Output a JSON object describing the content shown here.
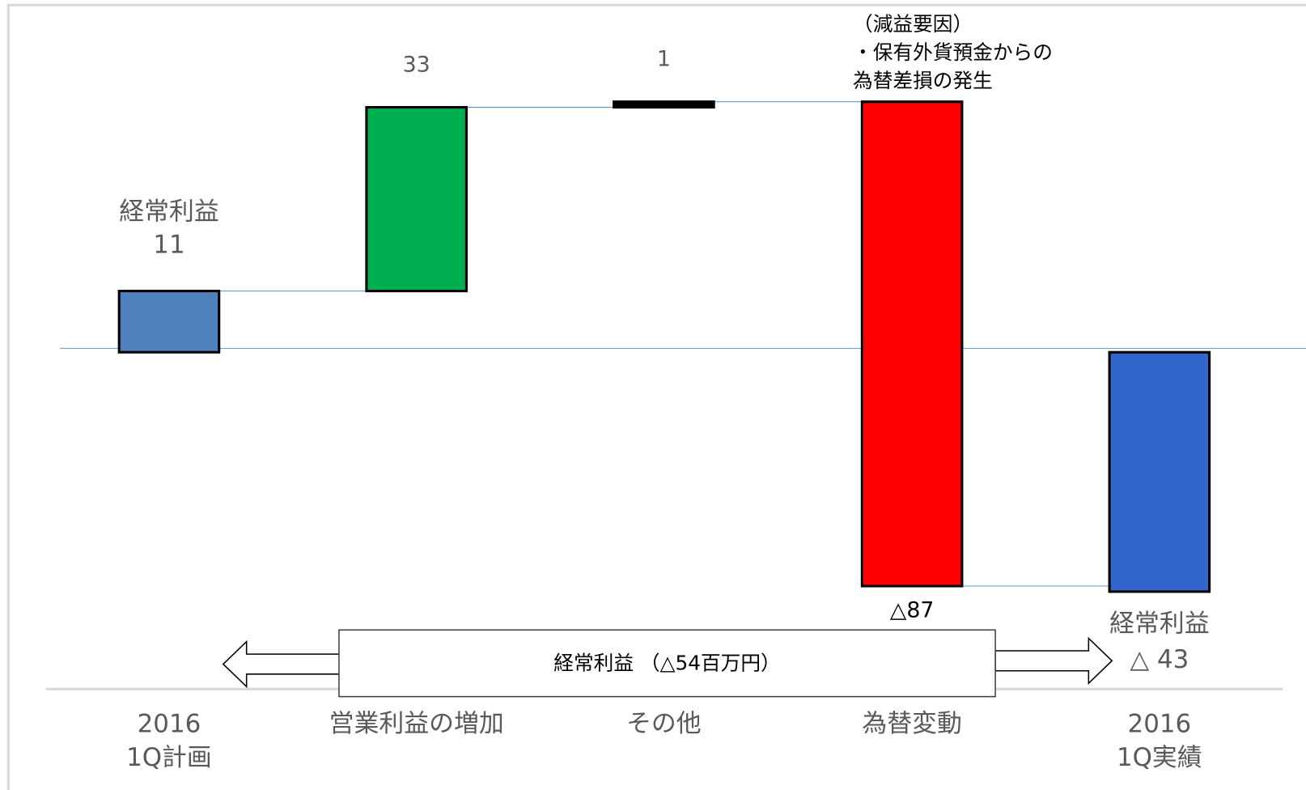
{
  "chart_data": {
    "type": "waterfall",
    "categories": [
      "2016\n1Q計画",
      "営業利益の増加",
      "その他",
      "為替変動",
      "2016\n1Q実績"
    ],
    "measures": [
      "absolute",
      "relative",
      "relative",
      "relative",
      "total"
    ],
    "values": [
      11,
      33,
      1,
      -87,
      -43
    ],
    "value_labels": [
      "11",
      "33",
      "1",
      "△87",
      "△ 43"
    ],
    "total_label": "経常利益",
    "colors": [
      "#4f81bd",
      "#00b050",
      "#000000",
      "#ff0000",
      "#3366cc"
    ],
    "annotation": "（減益要因）\n・保有外貨預金からの\n為替差損の発生",
    "summary": "経常利益 （△54百万円）"
  }
}
